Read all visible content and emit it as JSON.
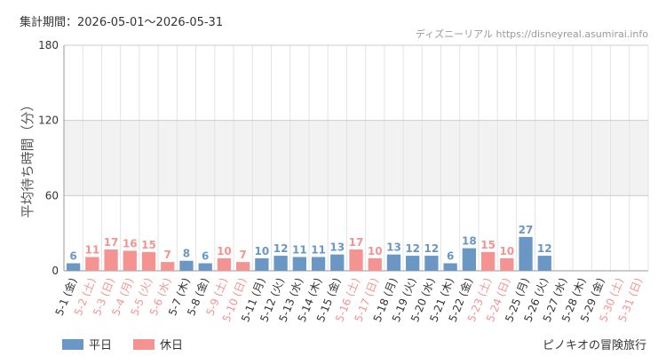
{
  "header": {
    "period": "集計期間：2026-05-01～2026-05-31",
    "credit": "ディズニーリアル https://disneyreal.asumirai.info"
  },
  "legend": {
    "weekday": "平日",
    "holiday": "休日"
  },
  "footer": {
    "attraction": "ピノキオの冒険旅行"
  },
  "colors": {
    "weekday": "#6a97c4",
    "holiday": "#f59393",
    "band": "#f2f2f2",
    "grid": "#e3e3e3"
  },
  "chart_data": {
    "type": "bar",
    "ylabel": "平均待ち時間（分）",
    "ylim": [
      0,
      180
    ],
    "yticks": [
      0,
      60,
      120,
      180
    ],
    "categories": [
      "5-1 (金)",
      "5-2 (土)",
      "5-3 (日)",
      "5-4 (月)",
      "5-5 (火)",
      "5-6 (水)",
      "5-7 (木)",
      "5-8 (金)",
      "5-9 (土)",
      "5-10 (日)",
      "5-11 (月)",
      "5-12 (火)",
      "5-13 (水)",
      "5-14 (木)",
      "5-15 (金)",
      "5-16 (土)",
      "5-17 (日)",
      "5-18 (月)",
      "5-19 (火)",
      "5-20 (水)",
      "5-21 (木)",
      "5-22 (金)",
      "5-23 (土)",
      "5-24 (日)",
      "5-25 (月)",
      "5-26 (火)",
      "5-27 (水)",
      "5-28 (木)",
      "5-29 (金)",
      "5-30 (土)",
      "5-31 (日)"
    ],
    "values": [
      6,
      11,
      17,
      16,
      15,
      7,
      8,
      6,
      10,
      7,
      10,
      12,
      11,
      11,
      13,
      17,
      10,
      13,
      12,
      12,
      6,
      18,
      15,
      10,
      27,
      12,
      null,
      null,
      null,
      null,
      null
    ],
    "day_type": [
      "weekday",
      "holiday",
      "holiday",
      "holiday",
      "holiday",
      "holiday",
      "weekday",
      "weekday",
      "holiday",
      "holiday",
      "weekday",
      "weekday",
      "weekday",
      "weekday",
      "weekday",
      "holiday",
      "holiday",
      "weekday",
      "weekday",
      "weekday",
      "weekday",
      "weekday",
      "holiday",
      "holiday",
      "weekday",
      "weekday",
      "weekday",
      "weekday",
      "weekday",
      "holiday",
      "holiday"
    ],
    "series": [
      {
        "name": "平日"
      },
      {
        "name": "休日"
      }
    ],
    "grid": true,
    "shaded_band": [
      60,
      120
    ],
    "legend_position": "bottom-left"
  }
}
